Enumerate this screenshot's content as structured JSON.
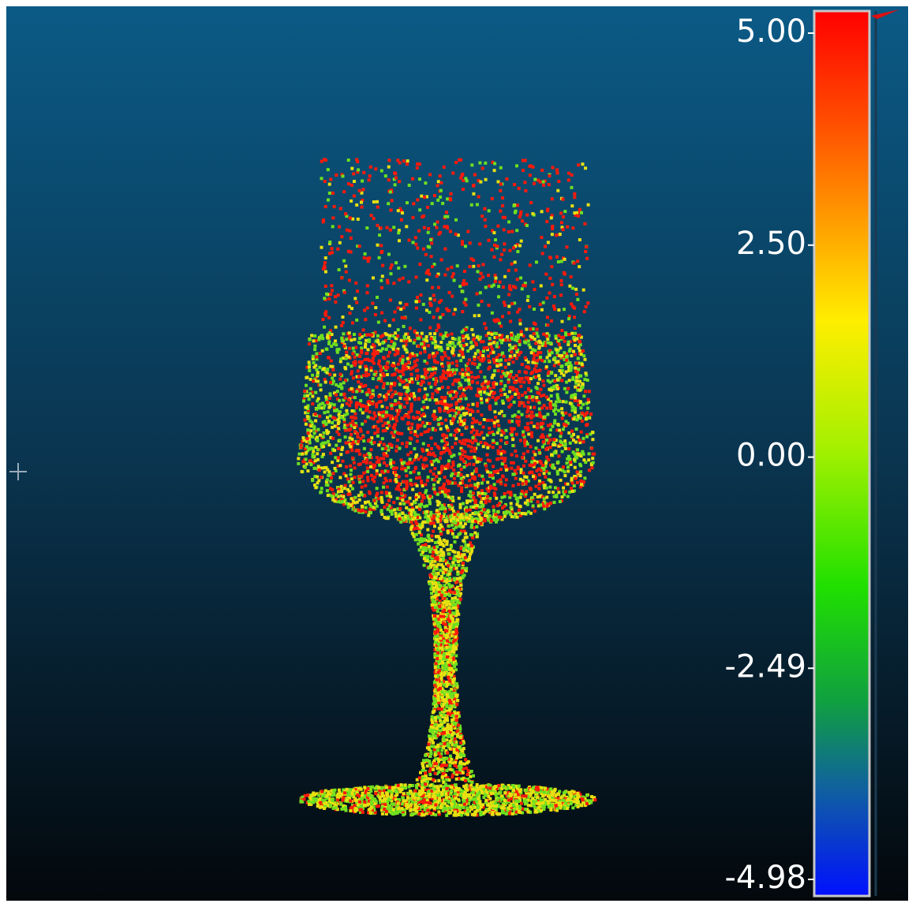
{
  "color_scale": {
    "ticks": [
      {
        "value": 5.0,
        "label": "5.00"
      },
      {
        "value": 2.5,
        "label": "2.50"
      },
      {
        "value": 0.0,
        "label": "0.00"
      },
      {
        "value": -2.49,
        "label": "-2.49"
      },
      {
        "value": -4.98,
        "label": "-4.98"
      }
    ]
  }
}
